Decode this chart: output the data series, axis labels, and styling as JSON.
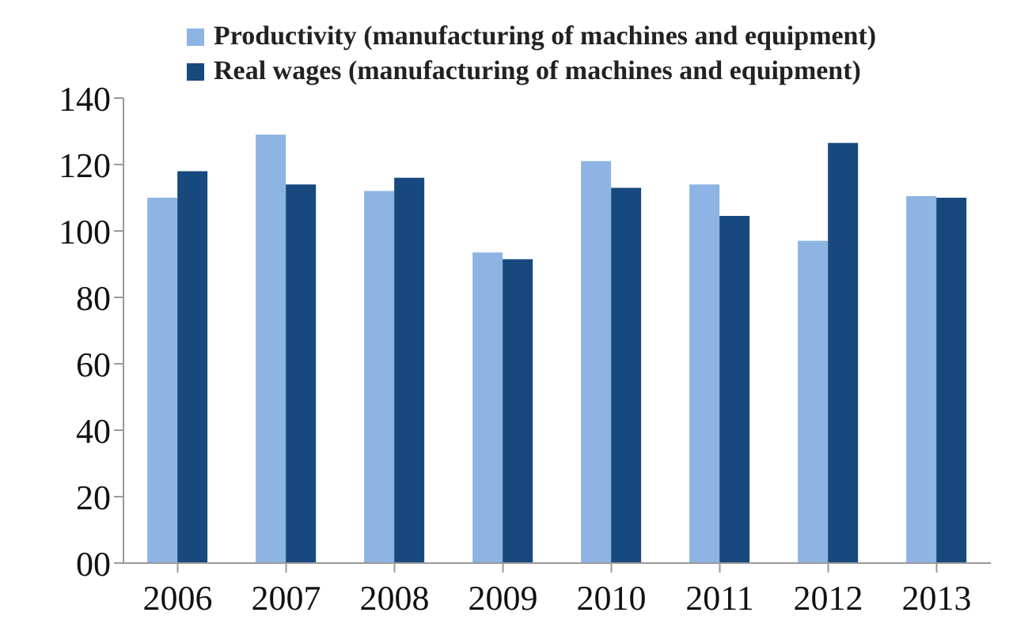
{
  "chart_data": {
    "type": "bar",
    "categories": [
      "2006",
      "2007",
      "2008",
      "2009",
      "2010",
      "2011",
      "2012",
      "2013"
    ],
    "series": [
      {
        "name": "Productivity (manufacturing of machines and equipment)",
        "color": "#8db4e2",
        "values": [
          110,
          129,
          112,
          93.5,
          121,
          114,
          97,
          110.5
        ]
      },
      {
        "name": "Real wages (manufacturing of machines and equipment)",
        "color": "#17497e",
        "values": [
          118,
          114,
          116,
          91.5,
          113,
          104.5,
          126.5,
          110
        ]
      }
    ],
    "ylim": [
      0,
      140
    ],
    "yticks": [
      {
        "value": 0,
        "label": "00"
      },
      20,
      40,
      60,
      80,
      100,
      120,
      140
    ],
    "grid": false,
    "legend": "top right"
  }
}
